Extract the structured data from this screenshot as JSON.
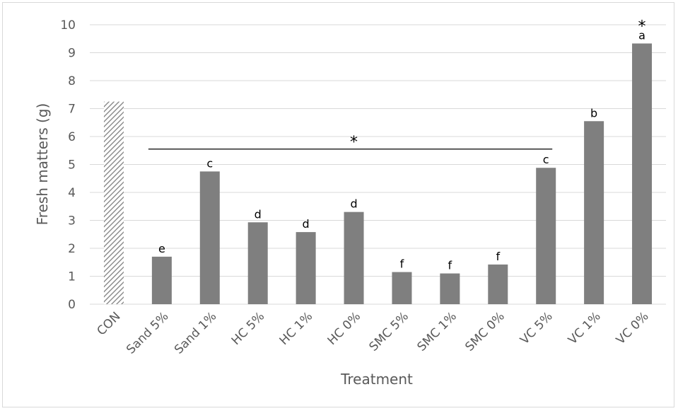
{
  "chart_data": {
    "type": "bar",
    "title": "",
    "xlabel": "Treatment",
    "ylabel": "Fresh matters (g)",
    "ylim": [
      0,
      10
    ],
    "yticks": [
      0,
      1,
      2,
      3,
      4,
      5,
      6,
      7,
      8,
      9,
      10
    ],
    "grid": true,
    "categories": [
      "CON",
      "Sand 5%",
      "Sand 1%",
      "HC 5%",
      "HC 1%",
      "HC 0%",
      "SMC 5%",
      "SMC 1%",
      "SMC 0%",
      "VC 5%",
      "VC 1%",
      "VC 0%"
    ],
    "values": [
      7.25,
      1.7,
      4.75,
      2.93,
      2.58,
      3.3,
      1.15,
      1.1,
      1.42,
      4.88,
      6.55,
      9.33
    ],
    "labels": [
      "",
      "e",
      "c",
      "d",
      "d",
      "d",
      "f",
      "f",
      "f",
      "c",
      "b",
      "a"
    ],
    "colors": {
      "bar": "#7f7f7f",
      "control_hatch": "#7f7f7f",
      "grid": "#d9d9d9"
    },
    "annotations": [
      {
        "text": "*",
        "type": "bracket",
        "from_category": "Sand 5%",
        "to_category": "VC 5%",
        "y": 5.55
      },
      {
        "text": "*",
        "type": "above_bar",
        "category": "VC 0%"
      }
    ]
  }
}
